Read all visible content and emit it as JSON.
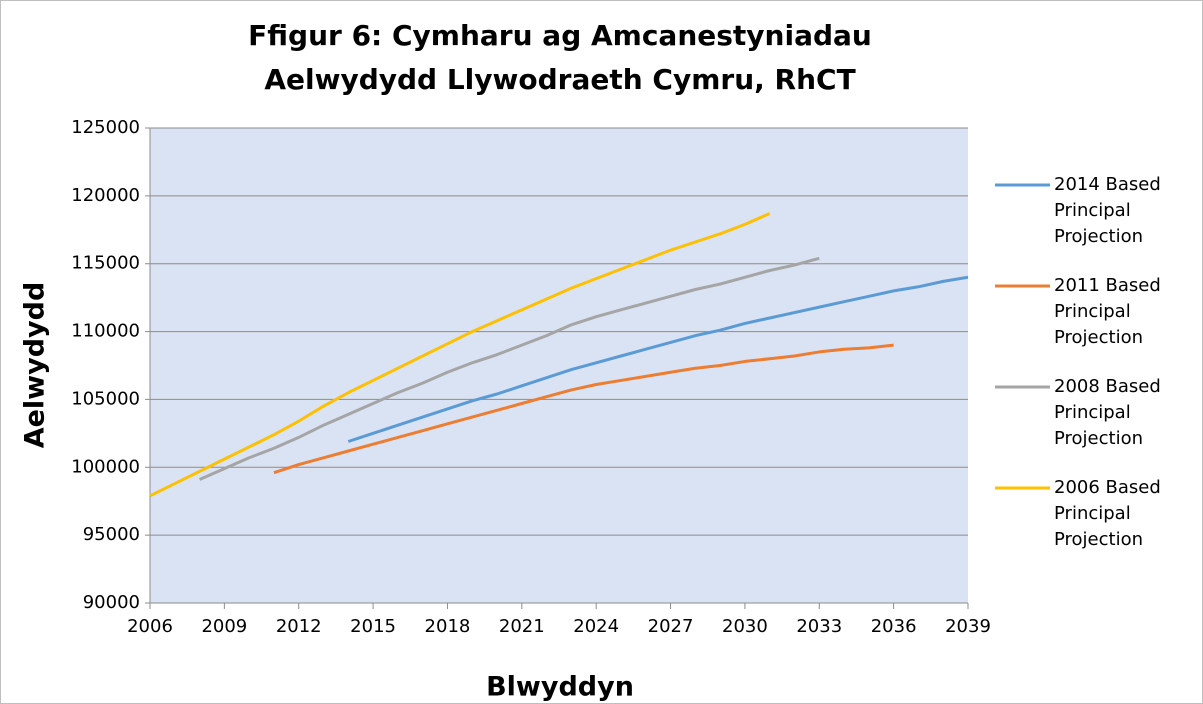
{
  "chart_data": {
    "type": "line",
    "title": "Ffigur 6: Cymharu ag Amcanestyniadau Aelwydydd Llywodraeth Cymru, RhCT",
    "x_label": "Blwyddyn",
    "y_label": "Aelwydydd",
    "x": [
      2006,
      2007,
      2008,
      2009,
      2010,
      2011,
      2012,
      2013,
      2014,
      2015,
      2016,
      2017,
      2018,
      2019,
      2020,
      2021,
      2022,
      2023,
      2024,
      2025,
      2026,
      2027,
      2028,
      2029,
      2030,
      2031,
      2032,
      2033,
      2034,
      2035,
      2036,
      2037,
      2038,
      2039
    ],
    "series": [
      {
        "name": "2014 Based Principal Projection",
        "color": "#5b9bd5",
        "values": [
          null,
          null,
          null,
          null,
          null,
          null,
          null,
          null,
          101900,
          102500,
          103100,
          103700,
          104300,
          104900,
          105400,
          106000,
          106600,
          107200,
          107700,
          108200,
          108700,
          109200,
          109700,
          110100,
          110600,
          111000,
          111400,
          111800,
          112200,
          112600,
          113000,
          113300,
          113700,
          114000
        ]
      },
      {
        "name": "2011 Based Principal Projection",
        "color": "#ed7d31",
        "values": [
          null,
          null,
          null,
          null,
          null,
          99600,
          100200,
          100700,
          101200,
          101700,
          102200,
          102700,
          103200,
          103700,
          104200,
          104700,
          105200,
          105700,
          106100,
          106400,
          106700,
          107000,
          107300,
          107500,
          107800,
          108000,
          108200,
          108500,
          108700,
          108800,
          109000,
          null,
          null,
          null
        ]
      },
      {
        "name": "2008 Based Principal Projection",
        "color": "#a5a5a5",
        "values": [
          null,
          null,
          99100,
          99900,
          100700,
          101400,
          102200,
          103100,
          103900,
          104700,
          105500,
          106200,
          107000,
          107700,
          108300,
          109000,
          109700,
          110500,
          111100,
          111600,
          112100,
          112600,
          113100,
          113500,
          114000,
          114500,
          114900,
          115400,
          null,
          null,
          null,
          null,
          null,
          null
        ]
      },
      {
        "name": "2006 Based Principal Projection",
        "color": "#ffc000",
        "values": [
          97900,
          98800,
          99700,
          100600,
          101500,
          102400,
          103400,
          104500,
          105500,
          106400,
          107300,
          108200,
          109100,
          110000,
          110800,
          111600,
          112400,
          113200,
          113900,
          114600,
          115300,
          116000,
          116600,
          117200,
          117900,
          118700,
          null,
          null,
          null,
          null,
          null,
          null,
          null,
          null
        ]
      }
    ],
    "xlim": [
      2006,
      2039
    ],
    "xticks": [
      2006,
      2009,
      2012,
      2015,
      2018,
      2021,
      2024,
      2027,
      2030,
      2033,
      2036,
      2039
    ],
    "ylim": [
      90000,
      125000
    ],
    "yticks": [
      90000,
      95000,
      100000,
      105000,
      110000,
      115000,
      120000,
      125000
    ],
    "grid": true,
    "legend": "right"
  }
}
